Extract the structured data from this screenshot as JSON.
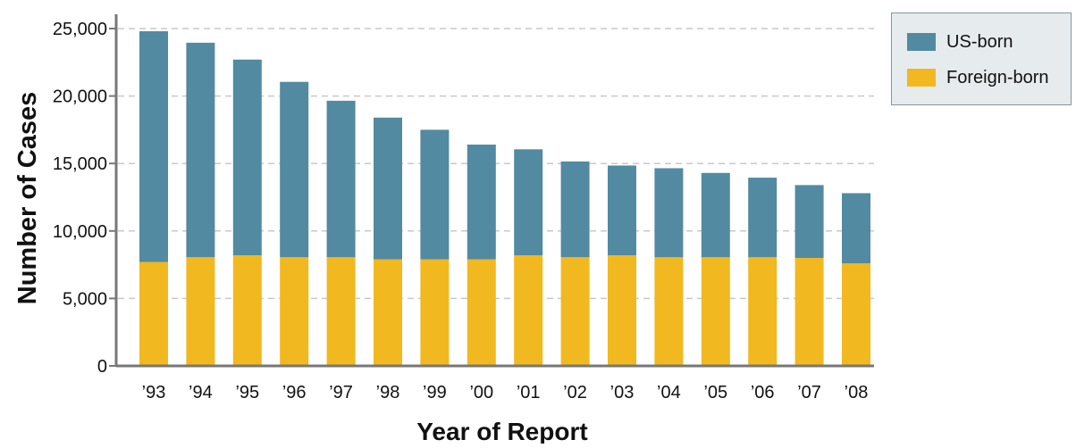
{
  "chart_data": {
    "type": "bar",
    "stacked": true,
    "title": "",
    "xlabel": "Year of Report",
    "ylabel": "Number of Cases",
    "categories": [
      "’93",
      "’94",
      "’95",
      "’96",
      "’97",
      "’98",
      "’99",
      "’00",
      "’01",
      "’02",
      "’03",
      "’04",
      "’05",
      "’06",
      "’07",
      "’08"
    ],
    "series": [
      {
        "name": "Foreign-born",
        "color": "#f1b81f",
        "values": [
          7700,
          8050,
          8200,
          8050,
          8050,
          7900,
          7900,
          7900,
          8200,
          8050,
          8200,
          8050,
          8050,
          8050,
          8000,
          7600
        ]
      },
      {
        "name": "US-born",
        "color": "#528aa2",
        "values": [
          17100,
          15900,
          14500,
          13000,
          11600,
          10500,
          9600,
          8500,
          7850,
          7100,
          6650,
          6600,
          6250,
          5900,
          5400,
          5200
        ]
      }
    ],
    "stack_order": [
      "Foreign-born",
      "US-born"
    ],
    "legend_order": [
      "US-born",
      "Foreign-born"
    ],
    "ylim": [
      0,
      25000
    ],
    "yticks": [
      0,
      5000,
      10000,
      15000,
      20000,
      25000
    ],
    "ytick_labels": [
      "0",
      "5,000",
      "10,000",
      "15,000",
      "20,000",
      "25,000"
    ],
    "grid": "horizontal dashed",
    "legend_placement": "top-right"
  }
}
